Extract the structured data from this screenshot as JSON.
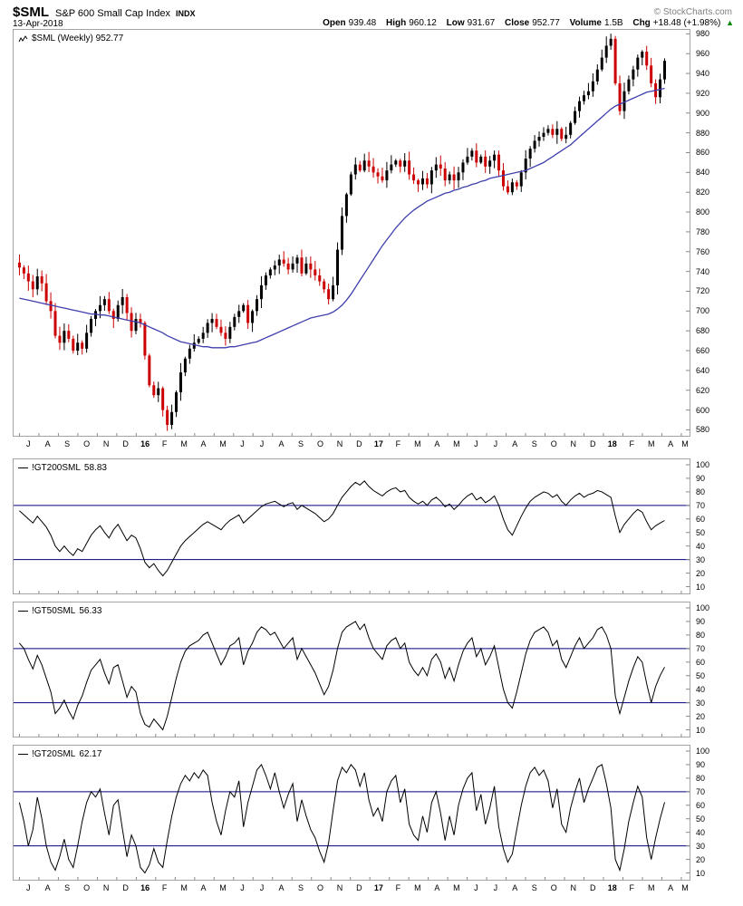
{
  "header": {
    "symbol": "$SML",
    "name": "S&P 600 Small Cap Index",
    "exchange": "INDX",
    "date": "13-Apr-2018",
    "credit": "© StockCharts.com",
    "quote": [
      {
        "label": "Open",
        "value": "939.48"
      },
      {
        "label": "High",
        "value": "960.12"
      },
      {
        "label": "Low",
        "value": "931.67"
      },
      {
        "label": "Close",
        "value": "952.77"
      },
      {
        "label": "Volume",
        "value": "1.5B"
      },
      {
        "label": "Chg",
        "value": "+18.48 (+1.98%)"
      }
    ],
    "chg_arrow": "▲"
  },
  "main_chart": {
    "legend": "$SML (Weekly) 952.77"
  },
  "panels": [
    {
      "label": "!GT200SML",
      "value": "58.83"
    },
    {
      "label": "!GT50SML",
      "value": "56.33"
    },
    {
      "label": "!GT20SML",
      "value": "62.17"
    }
  ],
  "colors": {
    "up": "#000000",
    "down": "#cc0000",
    "ma": "#3f3fae",
    "ref_line": "#000080",
    "arrow_up": "#008800"
  },
  "chart_data": [
    {
      "id": "price",
      "type": "candlestick",
      "title": "$SML (Weekly)",
      "last": 952.77,
      "ylim": [
        574,
        984
      ],
      "ytick_step": 20,
      "ytick_min": 580,
      "ytick_max": 980,
      "x_labels": [
        "J",
        "A",
        "S",
        "O",
        "N",
        "D",
        "16",
        "F",
        "M",
        "A",
        "M",
        "J",
        "J",
        "A",
        "S",
        "O",
        "N",
        "D",
        "17",
        "F",
        "M",
        "A",
        "M",
        "J",
        "J",
        "A",
        "S",
        "O",
        "N",
        "D",
        "18",
        "F",
        "M",
        "A",
        "M"
      ],
      "up_color": "#000000",
      "down_color": "#cc0000",
      "ma_color": "#3f3fae",
      "close": [
        744,
        738,
        730,
        722,
        735,
        728,
        710,
        700,
        675,
        668,
        680,
        672,
        660,
        668,
        662,
        678,
        692,
        700,
        706,
        712,
        700,
        692,
        706,
        714,
        698,
        680,
        692,
        688,
        655,
        625,
        615,
        622,
        600,
        585,
        598,
        618,
        638,
        652,
        662,
        668,
        672,
        678,
        688,
        692,
        684,
        678,
        672,
        684,
        694,
        700,
        706,
        688,
        700,
        712,
        726,
        736,
        742,
        746,
        752,
        748,
        742,
        748,
        754,
        738,
        748,
        742,
        736,
        730,
        722,
        712,
        726,
        762,
        796,
        818,
        838,
        848,
        842,
        852,
        846,
        840,
        836,
        832,
        842,
        848,
        852,
        846,
        852,
        838,
        832,
        828,
        834,
        828,
        842,
        848,
        844,
        832,
        838,
        832,
        840,
        850,
        856,
        862,
        850,
        856,
        846,
        852,
        858,
        842,
        826,
        820,
        830,
        826,
        840,
        854,
        864,
        872,
        876,
        880,
        884,
        878,
        884,
        874,
        878,
        890,
        902,
        912,
        918,
        922,
        932,
        944,
        956,
        968,
        975,
        930,
        902,
        922,
        934,
        944,
        956,
        962,
        948,
        930,
        916,
        934,
        952.77
      ],
      "ma": [
        713,
        712,
        711,
        710,
        709,
        708,
        707,
        706,
        705,
        704,
        703,
        702,
        701,
        700,
        699,
        698,
        697,
        697,
        696,
        696,
        695,
        694,
        693,
        692,
        691,
        690,
        689,
        688,
        686,
        684,
        682,
        680,
        678,
        675,
        673,
        671,
        669,
        668,
        667,
        666,
        665,
        664,
        664,
        663,
        663,
        663,
        663,
        664,
        664,
        665,
        666,
        667,
        668,
        669,
        671,
        673,
        675,
        677,
        679,
        681,
        683,
        685,
        687,
        689,
        691,
        693,
        694,
        695,
        696,
        697,
        699,
        702,
        706,
        711,
        717,
        724,
        731,
        738,
        745,
        752,
        759,
        766,
        772,
        778,
        784,
        789,
        794,
        798,
        802,
        805,
        808,
        811,
        813,
        815,
        817,
        819,
        820,
        822,
        823,
        825,
        826,
        828,
        829,
        831,
        832,
        834,
        835,
        836,
        837,
        838,
        839,
        840,
        841,
        842,
        844,
        846,
        848,
        850,
        853,
        856,
        859,
        862,
        865,
        868,
        872,
        876,
        880,
        884,
        888,
        892,
        896,
        900,
        904,
        907,
        909,
        911,
        913,
        915,
        917,
        919,
        921,
        922,
        923,
        924,
        925
      ]
    },
    {
      "id": "gt200",
      "type": "line",
      "label": "!GT200SML",
      "last": 58.83,
      "ylim": [
        5,
        104
      ],
      "yticks": [
        10,
        20,
        30,
        40,
        50,
        60,
        70,
        80,
        90,
        100
      ],
      "ref_lines": [
        70,
        30
      ],
      "values": [
        66,
        63,
        60,
        57,
        62,
        58,
        54,
        48,
        40,
        36,
        40,
        36,
        33,
        38,
        36,
        42,
        48,
        52,
        55,
        50,
        46,
        52,
        56,
        50,
        44,
        48,
        46,
        38,
        28,
        24,
        27,
        22,
        18,
        22,
        28,
        34,
        40,
        44,
        47,
        50,
        53,
        56,
        58,
        56,
        54,
        52,
        56,
        59,
        61,
        63,
        57,
        60,
        63,
        66,
        69,
        71,
        72,
        73,
        71,
        69,
        71,
        72,
        67,
        70,
        68,
        66,
        64,
        61,
        58,
        60,
        64,
        70,
        76,
        80,
        84,
        87,
        85,
        88,
        84,
        81,
        79,
        77,
        80,
        82,
        83,
        80,
        81,
        76,
        73,
        71,
        73,
        70,
        74,
        76,
        73,
        69,
        71,
        67,
        70,
        74,
        77,
        79,
        74,
        76,
        72,
        74,
        77,
        70,
        60,
        52,
        48,
        55,
        62,
        68,
        73,
        76,
        78,
        80,
        79,
        76,
        78,
        73,
        70,
        74,
        77,
        79,
        76,
        78,
        79,
        81,
        80,
        78,
        76,
        62,
        50,
        56,
        60,
        64,
        67,
        65,
        58,
        52,
        55,
        57,
        58.83
      ]
    },
    {
      "id": "gt50",
      "type": "line",
      "label": "!GT50SML",
      "last": 56.33,
      "ylim": [
        5,
        104
      ],
      "yticks": [
        10,
        20,
        30,
        40,
        50,
        60,
        70,
        80,
        90,
        100
      ],
      "ref_lines": [
        70,
        30
      ],
      "values": [
        74,
        70,
        62,
        55,
        65,
        58,
        48,
        38,
        22,
        26,
        32,
        24,
        18,
        28,
        35,
        45,
        54,
        58,
        62,
        52,
        44,
        56,
        58,
        46,
        34,
        42,
        38,
        22,
        14,
        12,
        18,
        14,
        10,
        20,
        34,
        48,
        60,
        68,
        72,
        74,
        76,
        80,
        82,
        74,
        66,
        58,
        64,
        72,
        74,
        78,
        58,
        68,
        74,
        82,
        86,
        84,
        80,
        82,
        76,
        70,
        74,
        78,
        62,
        70,
        64,
        58,
        52,
        44,
        36,
        42,
        54,
        70,
        82,
        86,
        88,
        90,
        84,
        88,
        78,
        70,
        66,
        62,
        72,
        76,
        78,
        70,
        74,
        60,
        54,
        50,
        56,
        50,
        62,
        66,
        60,
        48,
        56,
        46,
        58,
        68,
        74,
        78,
        64,
        70,
        58,
        64,
        72,
        56,
        40,
        30,
        26,
        38,
        52,
        66,
        76,
        82,
        84,
        86,
        82,
        72,
        76,
        62,
        56,
        64,
        72,
        78,
        70,
        74,
        78,
        84,
        86,
        80,
        70,
        35,
        22,
        34,
        46,
        56,
        64,
        60,
        44,
        30,
        42,
        50,
        56.33
      ]
    },
    {
      "id": "gt20",
      "type": "line",
      "label": "!GT20SML",
      "last": 62.17,
      "ylim": [
        5,
        104
      ],
      "yticks": [
        10,
        20,
        30,
        40,
        50,
        60,
        70,
        80,
        90,
        100
      ],
      "ref_lines": [
        70,
        30
      ],
      "values": [
        62,
        48,
        30,
        42,
        66,
        50,
        30,
        18,
        12,
        22,
        35,
        20,
        14,
        30,
        48,
        62,
        70,
        66,
        72,
        54,
        38,
        60,
        64,
        42,
        22,
        38,
        30,
        14,
        10,
        16,
        28,
        18,
        14,
        34,
        52,
        66,
        76,
        82,
        78,
        84,
        80,
        86,
        82,
        62,
        48,
        38,
        56,
        70,
        66,
        78,
        44,
        62,
        74,
        86,
        90,
        82,
        72,
        84,
        70,
        58,
        68,
        76,
        48,
        64,
        52,
        42,
        36,
        26,
        18,
        32,
        56,
        78,
        88,
        84,
        90,
        86,
        74,
        84,
        64,
        52,
        58,
        48,
        70,
        78,
        82,
        62,
        72,
        46,
        38,
        34,
        52,
        40,
        62,
        70,
        54,
        34,
        52,
        38,
        60,
        72,
        80,
        84,
        56,
        68,
        46,
        58,
        74,
        44,
        28,
        18,
        24,
        42,
        60,
        74,
        84,
        88,
        82,
        86,
        78,
        58,
        72,
        46,
        40,
        58,
        70,
        80,
        62,
        72,
        80,
        88,
        90,
        76,
        58,
        20,
        12,
        28,
        48,
        62,
        74,
        66,
        36,
        20,
        36,
        50,
        62.17
      ]
    }
  ]
}
